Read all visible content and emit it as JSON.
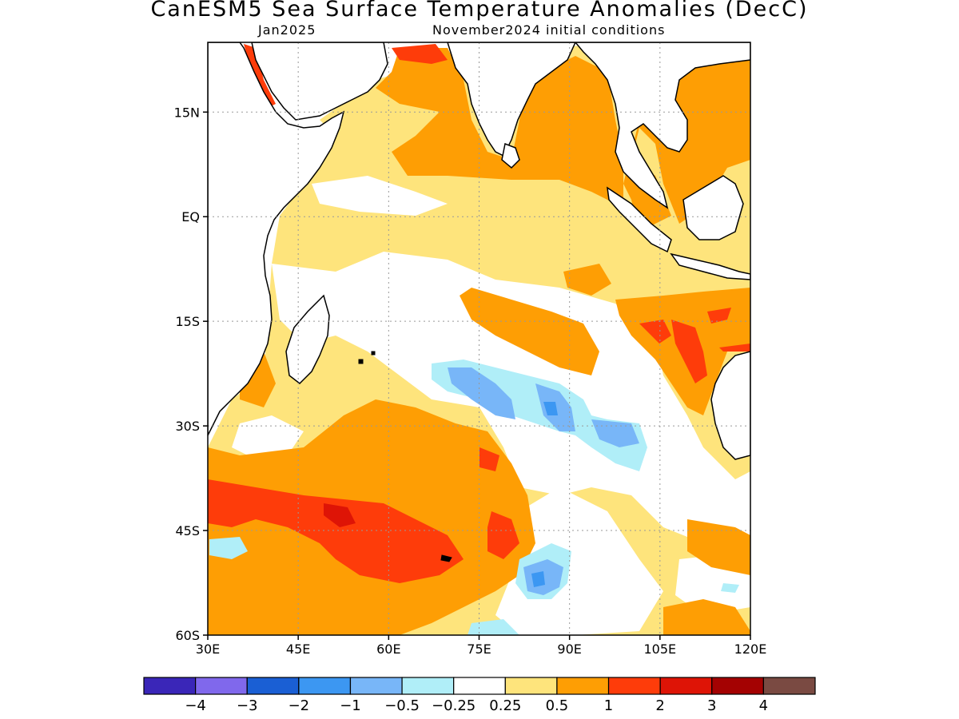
{
  "title": "CanESM5 Sea Surface Temperature Anomalies (DecC)",
  "subtitle_left": "Jan2025",
  "subtitle_right": "November2024 initial conditions",
  "map": {
    "lon_range": [
      30,
      120
    ],
    "lat_range": [
      -60,
      25
    ],
    "lon_ticks": [
      {
        "value": 30,
        "label": "30E"
      },
      {
        "value": 45,
        "label": "45E"
      },
      {
        "value": 60,
        "label": "60E"
      },
      {
        "value": 75,
        "label": "75E"
      },
      {
        "value": 90,
        "label": "90E"
      },
      {
        "value": 105,
        "label": "105E"
      },
      {
        "value": 120,
        "label": "120E"
      }
    ],
    "lat_ticks": [
      {
        "value": 15,
        "label": "15N"
      },
      {
        "value": 0,
        "label": "EQ"
      },
      {
        "value": -15,
        "label": "15S"
      },
      {
        "value": -30,
        "label": "30S"
      },
      {
        "value": -45,
        "label": "45S"
      },
      {
        "value": -60,
        "label": "60S"
      }
    ],
    "land_color": "#ffffff",
    "grid": true
  },
  "colorbar": {
    "colors": [
      "#3a26b8",
      "#8068ec",
      "#1a5fd4",
      "#3c97f2",
      "#78b6f8",
      "#b0eef8",
      "#ffffff",
      "#fee47c",
      "#fe9e04",
      "#fe3c0a",
      "#de1406",
      "#a40202",
      "#7a4a42"
    ],
    "labels": [
      "−4",
      "−3",
      "−2",
      "−1",
      "−0.5",
      "−0.25",
      "0.25",
      "0.5",
      "1",
      "2",
      "3",
      "4"
    ]
  }
}
